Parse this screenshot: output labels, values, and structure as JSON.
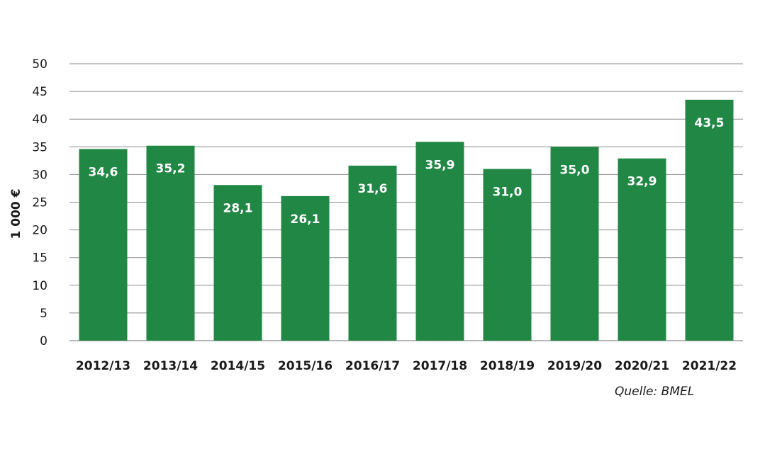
{
  "chart_data": {
    "type": "bar",
    "categories": [
      "2012/13",
      "2013/14",
      "2014/15",
      "2015/16",
      "2016/17",
      "2017/18",
      "2018/19",
      "2019/20",
      "2020/21",
      "2021/22"
    ],
    "values": [
      34.6,
      35.2,
      28.1,
      26.1,
      31.6,
      35.9,
      31.0,
      35.0,
      32.9,
      43.5
    ],
    "value_labels": [
      "34,6",
      "35,2",
      "28,1",
      "26,1",
      "31,6",
      "35,9",
      "31,0",
      "35,0",
      "32,9",
      "43,5"
    ],
    "ylabel": "1 000 €",
    "ylim": [
      0,
      50
    ],
    "yticks": [
      0,
      5,
      10,
      15,
      20,
      25,
      30,
      35,
      40,
      45,
      50
    ],
    "grid": true,
    "bar_color": "#218744"
  },
  "source": "Quelle: BMEL"
}
